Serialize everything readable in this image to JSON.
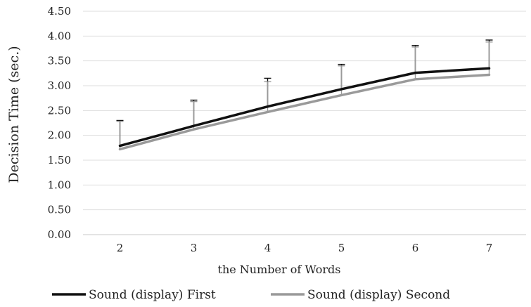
{
  "chart_data": {
    "type": "line",
    "title": "",
    "xlabel": "the Number of Words",
    "ylabel": "Decision Time (sec.)",
    "x": [
      2,
      3,
      4,
      5,
      6,
      7
    ],
    "categories": [
      "2",
      "3",
      "4",
      "5",
      "6",
      "7"
    ],
    "ylim": [
      0,
      4.5
    ],
    "yticks": [
      "0.00",
      "0.50",
      "1.00",
      "1.50",
      "2.00",
      "2.50",
      "3.00",
      "3.50",
      "4.00",
      "4.50"
    ],
    "grid": true,
    "legend_position": "bottom",
    "series": [
      {
        "name": "Sound (display) First",
        "color": "#111111",
        "values": [
          1.79,
          2.19,
          2.58,
          2.93,
          3.26,
          3.35
        ],
        "error_upper": [
          2.3,
          2.71,
          3.15,
          3.43,
          3.81,
          3.92
        ]
      },
      {
        "name": "Sound (display) Second",
        "color": "#9a9a9a",
        "values": [
          1.72,
          2.12,
          2.47,
          2.81,
          3.13,
          3.22
        ],
        "error_upper": [
          2.28,
          2.68,
          3.08,
          3.4,
          3.78,
          3.88
        ]
      }
    ]
  }
}
